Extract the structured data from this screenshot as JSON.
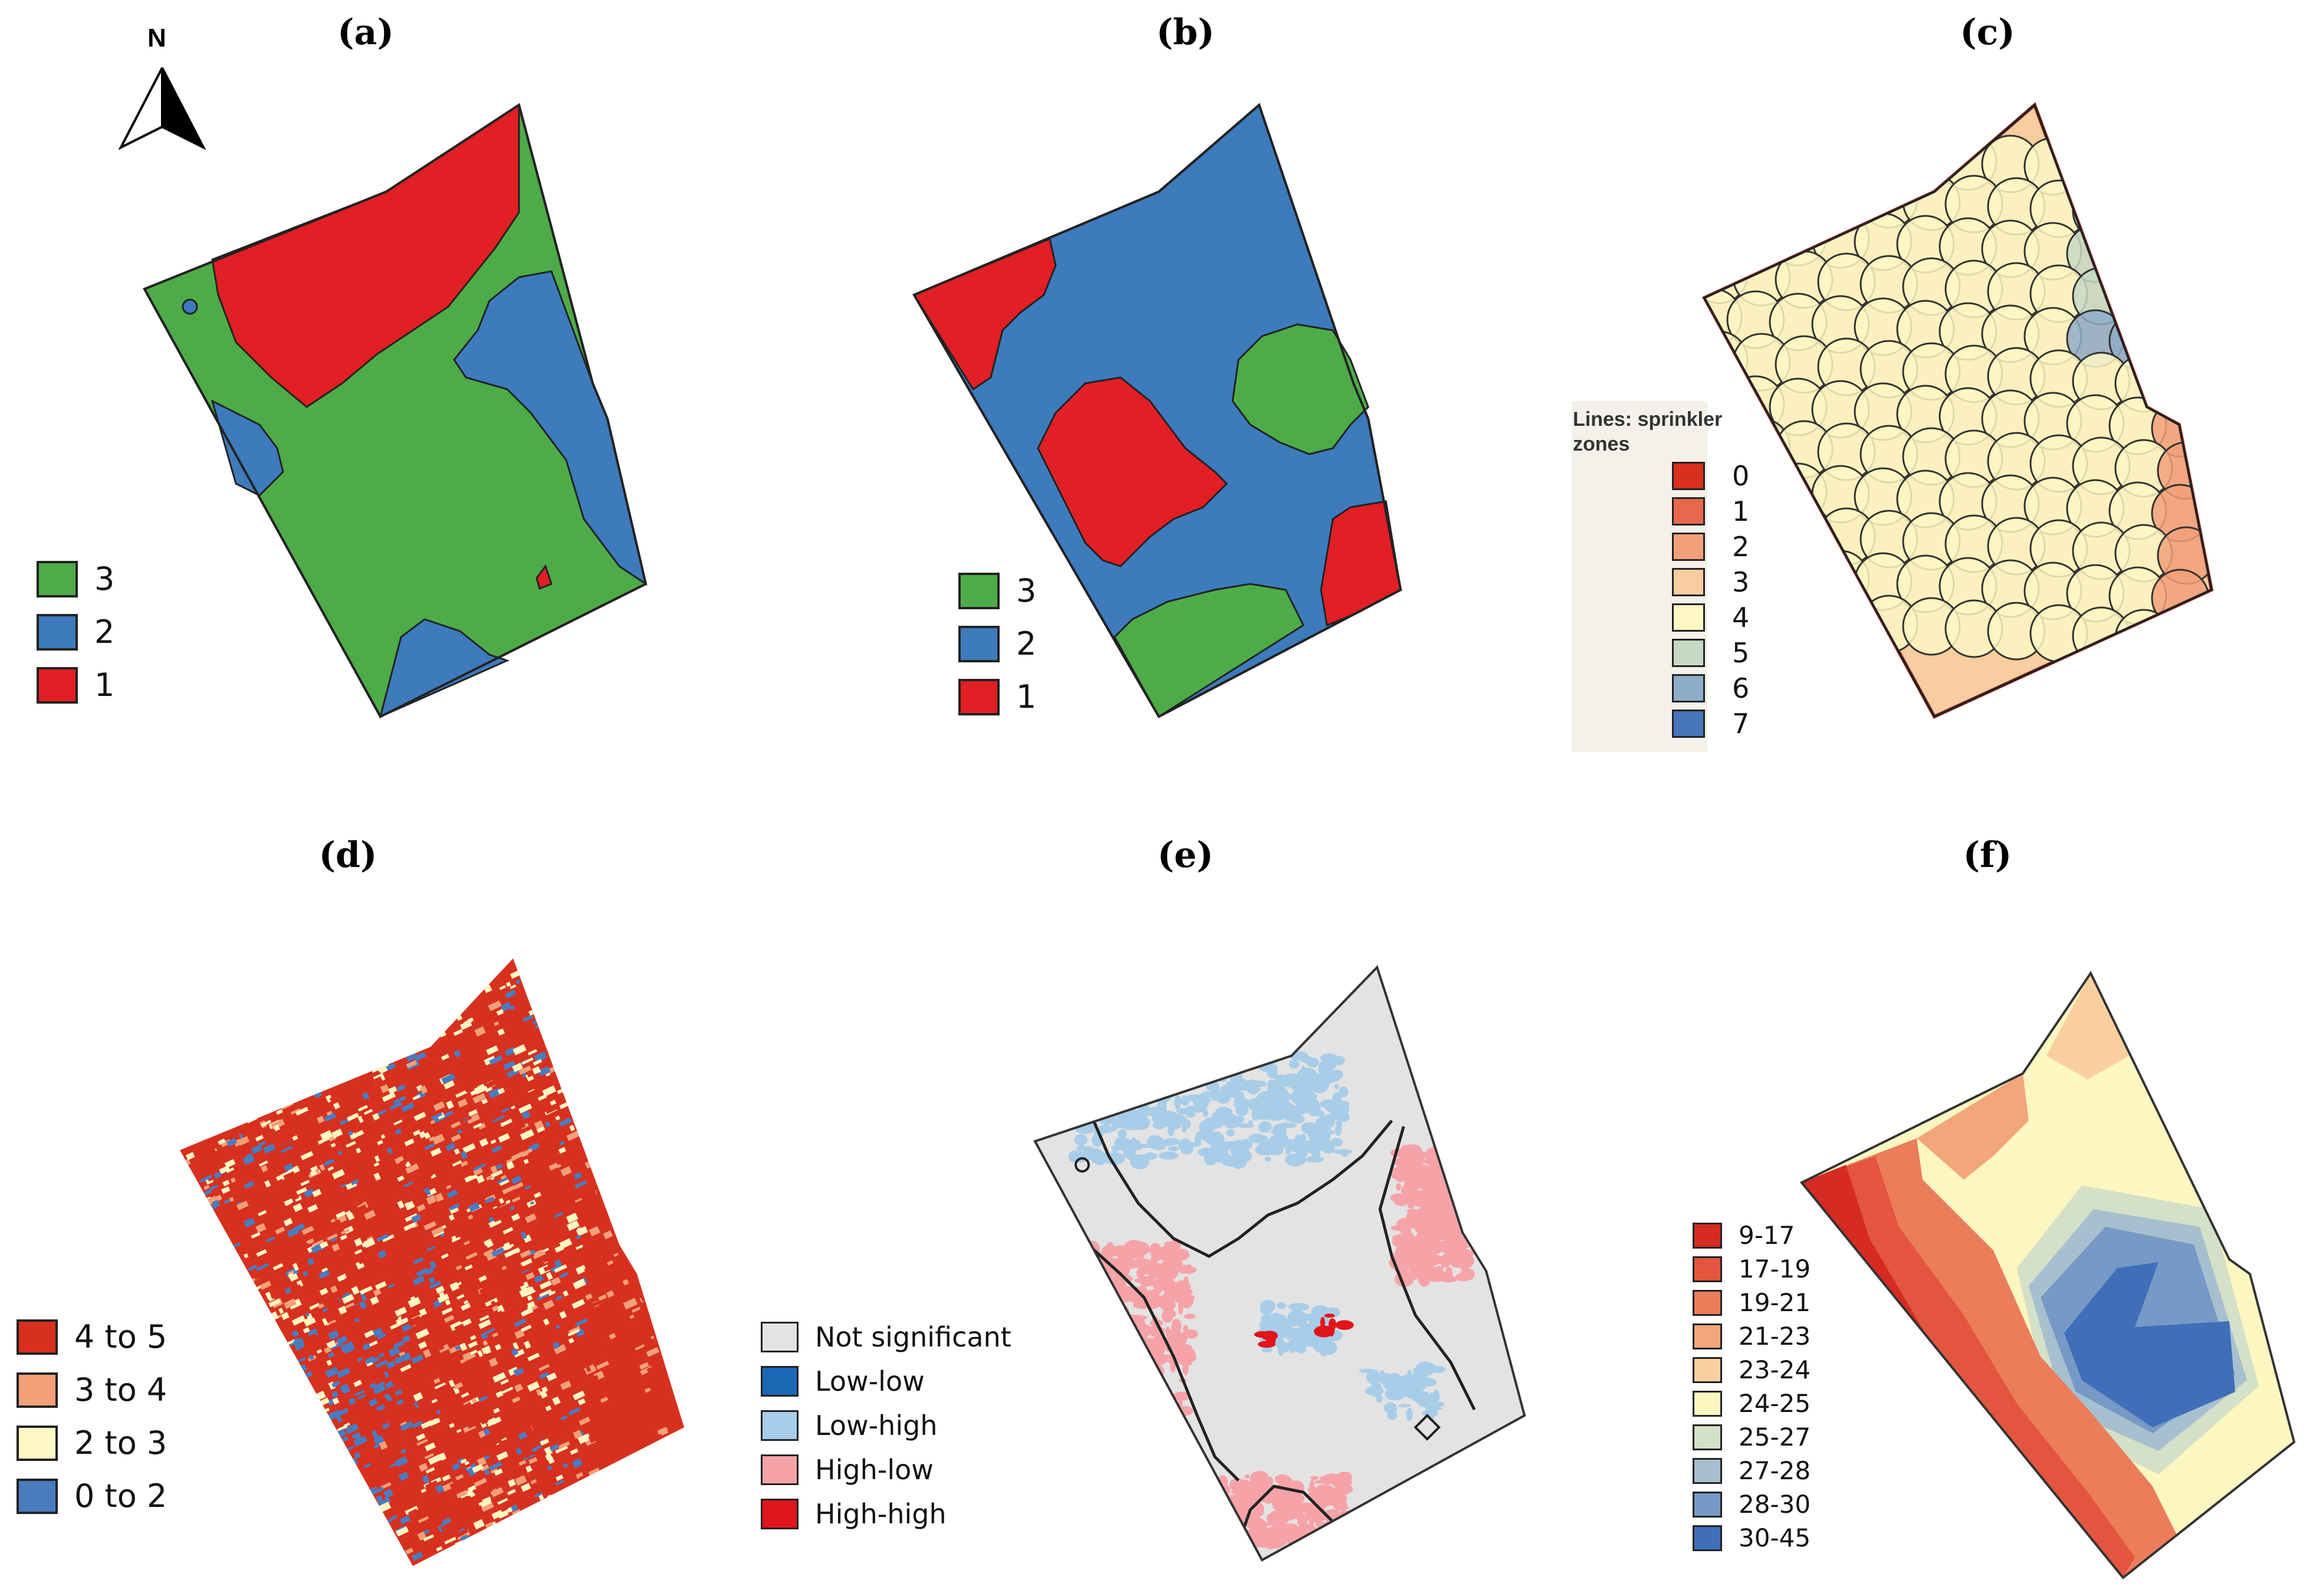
{
  "panels": {
    "a": {
      "label": "(a)",
      "north": "N",
      "legend": [
        {
          "text": "3",
          "color": "#4eac48"
        },
        {
          "text": "2",
          "color": "#3d7bbd"
        },
        {
          "text": "1",
          "color": "#e21f24"
        }
      ]
    },
    "b": {
      "label": "(b)",
      "legend": [
        {
          "text": "3",
          "color": "#4eac48"
        },
        {
          "text": "2",
          "color": "#3d7bbd"
        },
        {
          "text": "1",
          "color": "#e21f24"
        }
      ]
    },
    "c": {
      "label": "(c)",
      "legend_title": "Lines: sprinkler zones",
      "legend": [
        {
          "text": "0",
          "color": "#d7301f"
        },
        {
          "text": "1",
          "color": "#e8684d"
        },
        {
          "text": "2",
          "color": "#f2a07a"
        },
        {
          "text": "3",
          "color": "#f8cda0"
        },
        {
          "text": "4",
          "color": "#fdf7c3"
        },
        {
          "text": "5",
          "color": "#c6d9c4"
        },
        {
          "text": "6",
          "color": "#8eadc9"
        },
        {
          "text": "7",
          "color": "#4875ba"
        }
      ]
    },
    "d": {
      "label": "(d)",
      "legend": [
        {
          "text": "4 to 5",
          "color": "#d7301f"
        },
        {
          "text": "3 to 4",
          "color": "#f2a07a"
        },
        {
          "text": "2 to 3",
          "color": "#fdf7c3"
        },
        {
          "text": "0 to 2",
          "color": "#4a7cc0"
        }
      ]
    },
    "e": {
      "label": "(e)",
      "legend": [
        {
          "text": "Not significant",
          "color": "#e3e3e3"
        },
        {
          "text": "Low-low",
          "color": "#1a68b4"
        },
        {
          "text": "Low-high",
          "color": "#a8cde8"
        },
        {
          "text": "High-low",
          "color": "#f6a3a8"
        },
        {
          "text": "High-high",
          "color": "#e0151b"
        }
      ]
    },
    "f": {
      "label": "(f)",
      "legend": [
        {
          "text": "9-17",
          "color": "#d62b22"
        },
        {
          "text": "17-19",
          "color": "#e3553e"
        },
        {
          "text": "19-21",
          "color": "#ec7d5a"
        },
        {
          "text": "21-23",
          "color": "#f3a67a"
        },
        {
          "text": "23-24",
          "color": "#f9cf9f"
        },
        {
          "text": "24-25",
          "color": "#fcf6c1"
        },
        {
          "text": "25-27",
          "color": "#d4e0c7"
        },
        {
          "text": "27-28",
          "color": "#a7c0cf"
        },
        {
          "text": "28-30",
          "color": "#7799c6"
        },
        {
          "text": "30-45",
          "color": "#3f6fb8"
        }
      ]
    }
  }
}
